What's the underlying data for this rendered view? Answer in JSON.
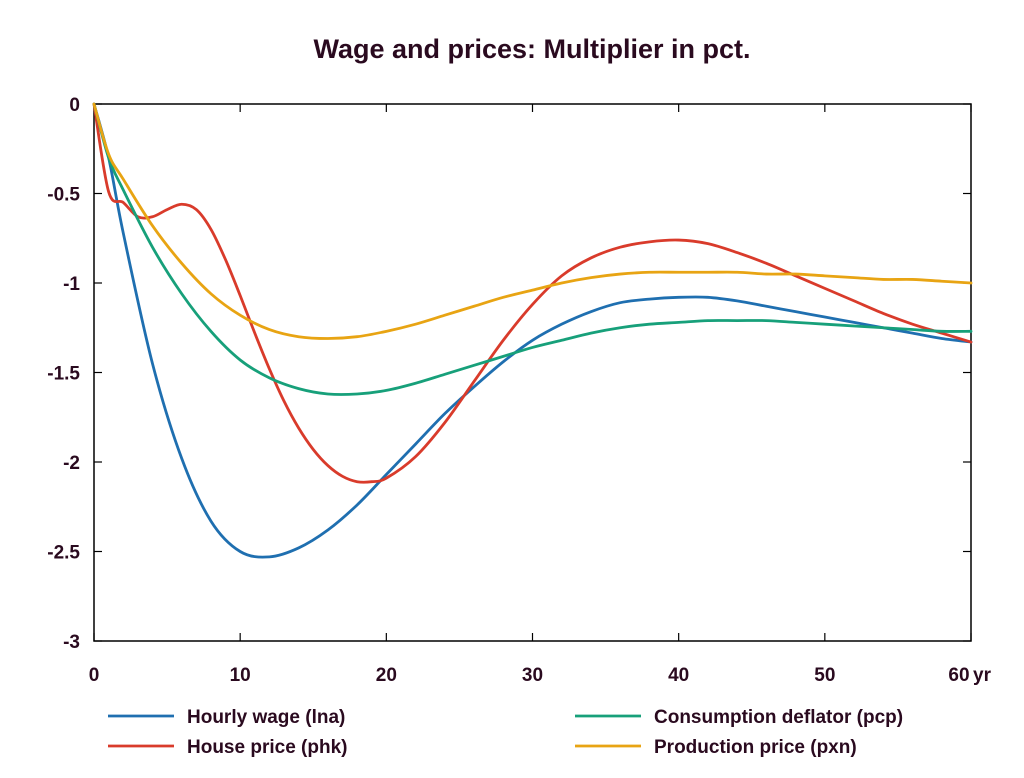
{
  "chart_data": {
    "type": "line",
    "title": "Wage and prices: Multiplier in pct.",
    "x_unit_label": "yr",
    "xlim": [
      0,
      60
    ],
    "ylim": [
      -3,
      0
    ],
    "x_ticks": [
      {
        "value": 0,
        "label": "0"
      },
      {
        "value": 10,
        "label": "10"
      },
      {
        "value": 20,
        "label": "20"
      },
      {
        "value": 30,
        "label": "30"
      },
      {
        "value": 40,
        "label": "40"
      },
      {
        "value": 50,
        "label": "50"
      },
      {
        "value": 60,
        "label": "60"
      }
    ],
    "y_ticks": [
      {
        "value": 0,
        "label": "0"
      },
      {
        "value": -0.5,
        "label": "-0.5"
      },
      {
        "value": -1,
        "label": "-1"
      },
      {
        "value": -1.5,
        "label": "-1.5"
      },
      {
        "value": -2,
        "label": "-2"
      },
      {
        "value": -2.5,
        "label": "-2.5"
      },
      {
        "value": -3,
        "label": "-3"
      }
    ],
    "grid": false,
    "legend_position": "bottom",
    "series": [
      {
        "name": "Hourly wage (lna)",
        "color": "#1f6fb0",
        "points": [
          [
            0,
            0
          ],
          [
            1,
            -0.3
          ],
          [
            2,
            -0.72
          ],
          [
            4,
            -1.45
          ],
          [
            6,
            -1.98
          ],
          [
            8,
            -2.33
          ],
          [
            10,
            -2.5
          ],
          [
            12,
            -2.53
          ],
          [
            14,
            -2.48
          ],
          [
            16,
            -2.38
          ],
          [
            18,
            -2.24
          ],
          [
            20,
            -2.07
          ],
          [
            22,
            -1.9
          ],
          [
            24,
            -1.73
          ],
          [
            26,
            -1.58
          ],
          [
            28,
            -1.44
          ],
          [
            30,
            -1.32
          ],
          [
            32,
            -1.23
          ],
          [
            34,
            -1.16
          ],
          [
            36,
            -1.11
          ],
          [
            38,
            -1.09
          ],
          [
            40,
            -1.08
          ],
          [
            42,
            -1.08
          ],
          [
            44,
            -1.1
          ],
          [
            46,
            -1.13
          ],
          [
            48,
            -1.16
          ],
          [
            50,
            -1.19
          ],
          [
            52,
            -1.22
          ],
          [
            54,
            -1.25
          ],
          [
            56,
            -1.28
          ],
          [
            58,
            -1.31
          ],
          [
            60,
            -1.33
          ]
        ]
      },
      {
        "name": "House price (phk)",
        "color": "#d93b2b",
        "points": [
          [
            0,
            0
          ],
          [
            1,
            -0.49
          ],
          [
            2,
            -0.55
          ],
          [
            3,
            -0.63
          ],
          [
            4,
            -0.63
          ],
          [
            5,
            -0.59
          ],
          [
            6,
            -0.56
          ],
          [
            7,
            -0.59
          ],
          [
            8,
            -0.7
          ],
          [
            9,
            -0.87
          ],
          [
            10,
            -1.07
          ],
          [
            11,
            -1.28
          ],
          [
            12,
            -1.48
          ],
          [
            13,
            -1.66
          ],
          [
            14,
            -1.81
          ],
          [
            15,
            -1.93
          ],
          [
            16,
            -2.02
          ],
          [
            17,
            -2.08
          ],
          [
            18,
            -2.11
          ],
          [
            19,
            -2.11
          ],
          [
            20,
            -2.09
          ],
          [
            22,
            -1.97
          ],
          [
            24,
            -1.78
          ],
          [
            26,
            -1.55
          ],
          [
            28,
            -1.32
          ],
          [
            30,
            -1.12
          ],
          [
            32,
            -0.96
          ],
          [
            34,
            -0.86
          ],
          [
            36,
            -0.8
          ],
          [
            38,
            -0.77
          ],
          [
            40,
            -0.76
          ],
          [
            42,
            -0.78
          ],
          [
            44,
            -0.83
          ],
          [
            46,
            -0.89
          ],
          [
            48,
            -0.96
          ],
          [
            50,
            -1.03
          ],
          [
            52,
            -1.1
          ],
          [
            54,
            -1.17
          ],
          [
            56,
            -1.23
          ],
          [
            58,
            -1.28
          ],
          [
            60,
            -1.33
          ]
        ]
      },
      {
        "name": "Consumption deflator (pcp)",
        "color": "#17a07a",
        "points": [
          [
            0,
            0
          ],
          [
            1,
            -0.3
          ],
          [
            2,
            -0.48
          ],
          [
            4,
            -0.8
          ],
          [
            6,
            -1.06
          ],
          [
            8,
            -1.27
          ],
          [
            10,
            -1.43
          ],
          [
            12,
            -1.53
          ],
          [
            14,
            -1.59
          ],
          [
            16,
            -1.62
          ],
          [
            18,
            -1.62
          ],
          [
            20,
            -1.6
          ],
          [
            22,
            -1.56
          ],
          [
            24,
            -1.51
          ],
          [
            26,
            -1.46
          ],
          [
            28,
            -1.41
          ],
          [
            30,
            -1.36
          ],
          [
            32,
            -1.32
          ],
          [
            34,
            -1.28
          ],
          [
            36,
            -1.25
          ],
          [
            38,
            -1.23
          ],
          [
            40,
            -1.22
          ],
          [
            42,
            -1.21
          ],
          [
            44,
            -1.21
          ],
          [
            46,
            -1.21
          ],
          [
            48,
            -1.22
          ],
          [
            50,
            -1.23
          ],
          [
            52,
            -1.24
          ],
          [
            54,
            -1.25
          ],
          [
            56,
            -1.26
          ],
          [
            58,
            -1.27
          ],
          [
            60,
            -1.27
          ]
        ]
      },
      {
        "name": "Production price (pxn)",
        "color": "#e8a413",
        "points": [
          [
            0,
            0
          ],
          [
            1,
            -0.28
          ],
          [
            2,
            -0.42
          ],
          [
            4,
            -0.68
          ],
          [
            6,
            -0.89
          ],
          [
            8,
            -1.06
          ],
          [
            10,
            -1.18
          ],
          [
            12,
            -1.26
          ],
          [
            14,
            -1.3
          ],
          [
            16,
            -1.31
          ],
          [
            18,
            -1.3
          ],
          [
            20,
            -1.27
          ],
          [
            22,
            -1.23
          ],
          [
            24,
            -1.18
          ],
          [
            26,
            -1.13
          ],
          [
            28,
            -1.08
          ],
          [
            30,
            -1.04
          ],
          [
            32,
            -1.0
          ],
          [
            34,
            -0.97
          ],
          [
            36,
            -0.95
          ],
          [
            38,
            -0.94
          ],
          [
            40,
            -0.94
          ],
          [
            42,
            -0.94
          ],
          [
            44,
            -0.94
          ],
          [
            46,
            -0.95
          ],
          [
            48,
            -0.95
          ],
          [
            50,
            -0.96
          ],
          [
            52,
            -0.97
          ],
          [
            54,
            -0.98
          ],
          [
            56,
            -0.98
          ],
          [
            58,
            -0.99
          ],
          [
            60,
            -1.0
          ]
        ]
      }
    ]
  }
}
